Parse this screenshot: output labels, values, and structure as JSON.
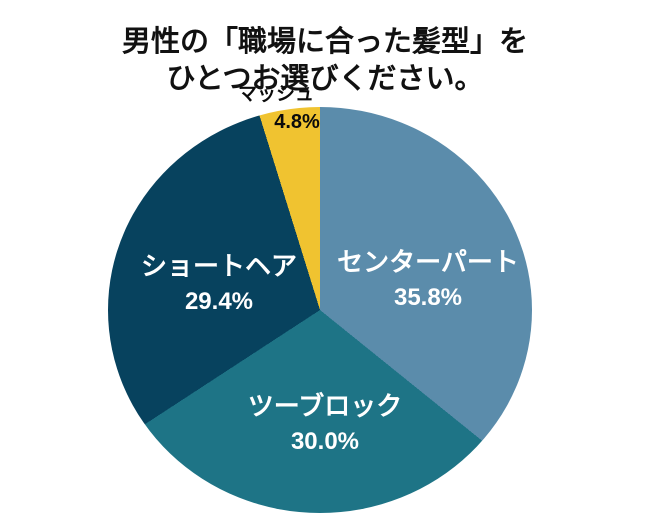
{
  "title": "男性の「職場に合った髪型」を\nひとつお選びください。",
  "chart_data": {
    "type": "pie",
    "title": "男性の「職場に合った髪型」をひとつお選びください。",
    "start_angle_deg": 0,
    "direction": "clockwise",
    "legend": "none",
    "background": "#ffffff",
    "slices": [
      {
        "label": "センターパート",
        "value": 35.8,
        "display": "35.8%",
        "color": "#5b8cab",
        "text_color": "#ffffff",
        "label_placement": "inside"
      },
      {
        "label": "ツーブロック",
        "value": 30.0,
        "display": "30.0%",
        "color": "#1e7486",
        "text_color": "#ffffff",
        "label_placement": "inside"
      },
      {
        "label": "ショートヘア",
        "value": 29.4,
        "display": "29.4%",
        "color": "#07425e",
        "text_color": "#ffffff",
        "label_placement": "inside"
      },
      {
        "label": "マッシュ",
        "value": 4.8,
        "display": "4.8%",
        "color": "#f0c330",
        "text_color": "#000000",
        "label_placement": "outside"
      }
    ]
  }
}
